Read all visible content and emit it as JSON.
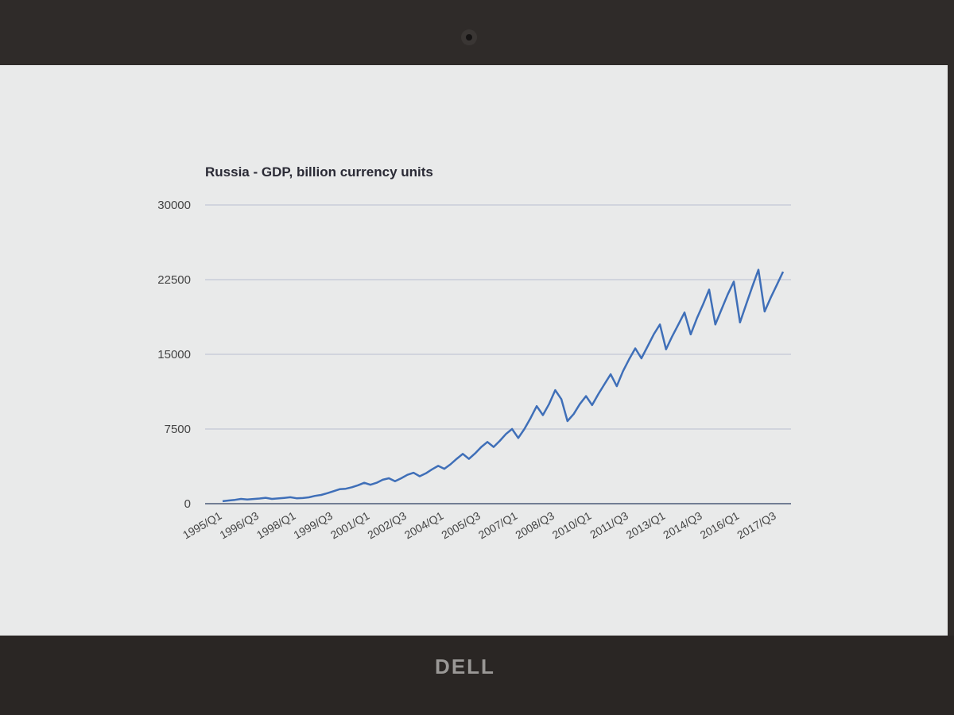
{
  "brand": "DELL",
  "chart_data": {
    "type": "line",
    "title": "Russia - GDP, billion currency units",
    "categories": [
      "1995/Q1",
      null,
      null,
      null,
      null,
      null,
      "1996/Q3",
      null,
      null,
      null,
      null,
      null,
      "1998/Q1",
      null,
      null,
      null,
      null,
      null,
      "1999/Q3",
      null,
      null,
      null,
      null,
      null,
      "2001/Q1",
      null,
      null,
      null,
      null,
      null,
      "2002/Q3",
      null,
      null,
      null,
      null,
      null,
      "2004/Q1",
      null,
      null,
      null,
      null,
      null,
      "2005/Q3",
      null,
      null,
      null,
      null,
      null,
      "2007/Q1",
      null,
      null,
      null,
      null,
      null,
      "2008/Q3",
      null,
      null,
      null,
      null,
      null,
      "2010/Q1",
      null,
      null,
      null,
      null,
      null,
      "2011/Q3",
      null,
      null,
      null,
      null,
      null,
      "2013/Q1",
      null,
      null,
      null,
      null,
      null,
      "2014/Q3",
      null,
      null,
      null,
      null,
      null,
      "2016/Q1",
      null,
      null,
      null,
      null,
      null,
      "2017/Q3",
      null
    ],
    "series": [
      {
        "color": "#3f6fb8",
        "values": [
          250,
          320,
          380,
          480,
          420,
          470,
          520,
          590,
          480,
          530,
          580,
          650,
          540,
          570,
          640,
          780,
          880,
          1050,
          1250,
          1450,
          1500,
          1650,
          1850,
          2100,
          1900,
          2100,
          2400,
          2550,
          2250,
          2550,
          2900,
          3100,
          2750,
          3050,
          3450,
          3800,
          3500,
          3950,
          4500,
          5000,
          4500,
          5050,
          5700,
          6200,
          5700,
          6300,
          7000,
          7500,
          6600,
          7500,
          8600,
          9800,
          8900,
          10000,
          11400,
          10500,
          8300,
          9000,
          10000,
          10800,
          9900,
          11000,
          12000,
          13000,
          11800,
          13300,
          14500,
          15600,
          14600,
          15800,
          17000,
          18000,
          15500,
          16800,
          18000,
          19200,
          17000,
          18600,
          20000,
          21500,
          18000,
          19500,
          21000,
          22300,
          18200,
          20000,
          21800,
          23500,
          19300,
          20700,
          22000,
          23300
        ]
      }
    ],
    "ylim": [
      0,
      30000
    ],
    "yticks": [
      0,
      7500,
      15000,
      22500,
      30000
    ],
    "grid": true
  }
}
